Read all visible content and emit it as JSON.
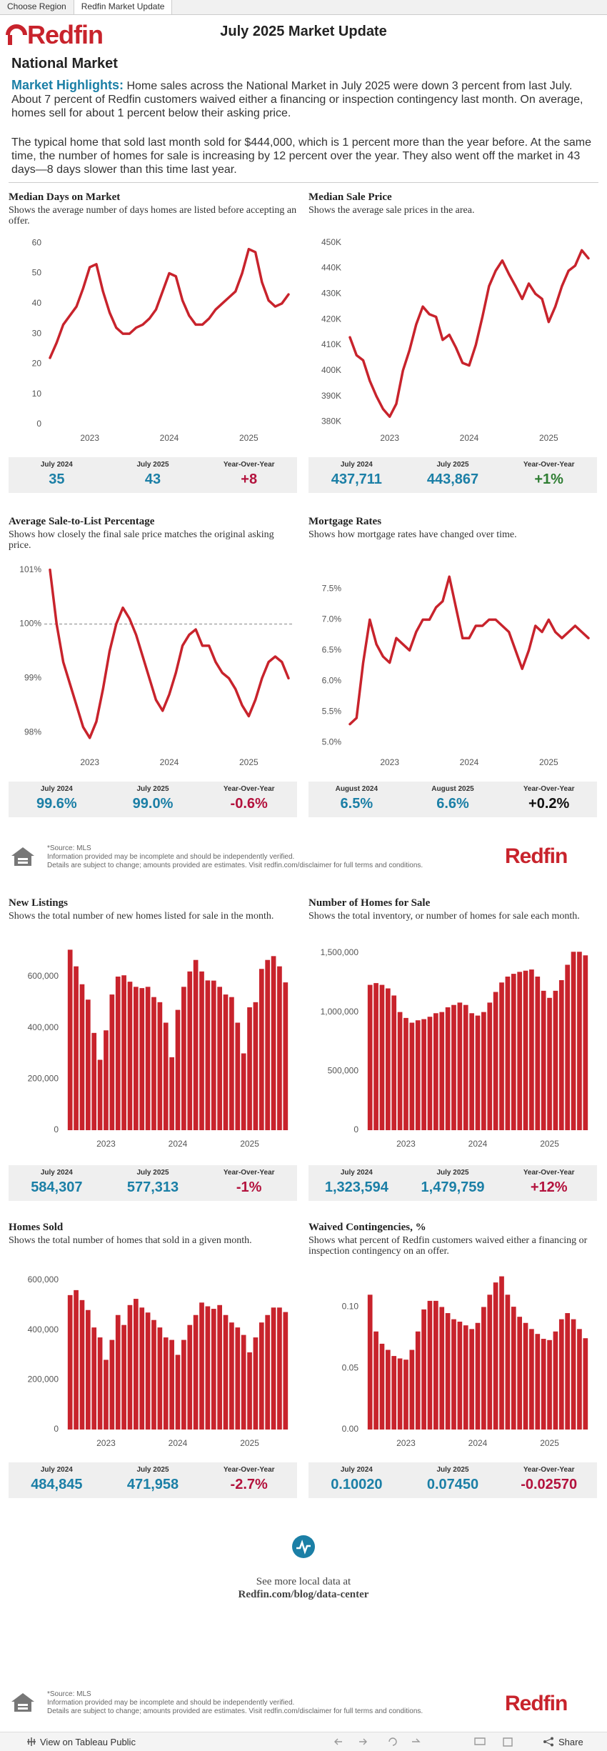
{
  "tabs": [
    "Choose Region",
    "Redfin Market Update"
  ],
  "header": {
    "logo": "Redfin",
    "title": "July 2025 Market Update",
    "region": "National Market"
  },
  "highlights": {
    "label": "Market Highlights:",
    "text": "Home sales across the National Market in July 2025 were down 3 percent from last July. About 7 percent of Redfin customers waived either a financing or inspection contingency last month. On average, homes sell for about 1 percent below their asking price.",
    "text2": "The typical home that sold last month sold for $444,000, which is 1 percent more than the year before. At the same time, the number of homes for sale is increasing by 12 percent over the year. They also went off the market in 43 days—8 days slower than this time last year."
  },
  "chart_data": [
    {
      "type": "line",
      "title": "Median Days on Market",
      "subtitle": "Shows the average number of days homes are listed before accepting an offer.",
      "color": "#c8232c",
      "grid": false,
      "categories": [
        null,
        null,
        null,
        null,
        null,
        null,
        "2023",
        null,
        null,
        null,
        null,
        null,
        null,
        null,
        null,
        null,
        null,
        null,
        "2024",
        null,
        null,
        null,
        null,
        null,
        null,
        null,
        null,
        null,
        null,
        null,
        "2025",
        null,
        null,
        null,
        null,
        null,
        null
      ],
      "values": [
        22,
        27,
        33,
        36,
        39,
        45,
        52,
        53,
        44,
        37,
        32,
        30,
        30,
        32,
        33,
        35,
        38,
        44,
        50,
        49,
        41,
        36,
        33,
        33,
        35,
        38,
        40,
        42,
        44,
        50,
        58,
        57,
        47,
        41,
        39,
        40,
        43
      ],
      "ylim": [
        0,
        61
      ],
      "yticks": [
        0,
        10,
        20,
        30,
        40,
        50,
        60
      ],
      "stats": [
        {
          "label": "July 2024",
          "value": "35",
          "color": "#1b7fa6"
        },
        {
          "label": "July 2025",
          "value": "43",
          "color": "#1b7fa6"
        },
        {
          "label": "Year-Over-Year",
          "value": "+8",
          "color": "#b3123d"
        }
      ]
    },
    {
      "type": "line",
      "title": "Median Sale Price",
      "subtitle": "Shows the average sale prices in the area.",
      "color": "#c8232c",
      "grid": false,
      "categories": [
        null,
        null,
        null,
        null,
        null,
        null,
        "2023",
        null,
        null,
        null,
        null,
        null,
        null,
        null,
        null,
        null,
        null,
        null,
        "2024",
        null,
        null,
        null,
        null,
        null,
        null,
        null,
        null,
        null,
        null,
        null,
        "2025",
        null,
        null,
        null,
        null,
        null,
        null
      ],
      "values": [
        413000,
        406000,
        404000,
        396000,
        390000,
        385000,
        382000,
        387000,
        400000,
        408000,
        418000,
        425000,
        422000,
        421000,
        412000,
        414000,
        409000,
        403000,
        402000,
        410000,
        421000,
        433000,
        439000,
        443000,
        437711,
        433000,
        428000,
        434000,
        430000,
        428000,
        419000,
        425000,
        433000,
        439000,
        441000,
        447000,
        443867
      ],
      "ylim": [
        379000,
        451000
      ],
      "yticks": [
        {
          "value": 380000,
          "label": "380K"
        },
        {
          "value": 390000,
          "label": "390K"
        },
        {
          "value": 400000,
          "label": "400K"
        },
        {
          "value": 410000,
          "label": "410K"
        },
        {
          "value": 420000,
          "label": "420K"
        },
        {
          "value": 430000,
          "label": "430K"
        },
        {
          "value": 440000,
          "label": "440K"
        },
        {
          "value": 450000,
          "label": "450K"
        }
      ],
      "stats": [
        {
          "label": "July 2024",
          "value": "437,711",
          "color": "#1b7fa6"
        },
        {
          "label": "July 2025",
          "value": "443,867",
          "color": "#1b7fa6"
        },
        {
          "label": "Year-Over-Year",
          "value": "+1%",
          "color": "#2e7d32"
        }
      ]
    },
    {
      "type": "line",
      "title": "Average Sale-to-List Percentage",
      "subtitle": "Shows how closely the final sale price matches the original asking price.",
      "color": "#c8232c",
      "grid": false,
      "reference_line": 100,
      "categories": [
        null,
        null,
        null,
        null,
        null,
        null,
        "2023",
        null,
        null,
        null,
        null,
        null,
        null,
        null,
        null,
        null,
        null,
        null,
        "2024",
        null,
        null,
        null,
        null,
        null,
        null,
        null,
        null,
        null,
        null,
        null,
        "2025",
        null,
        null,
        null,
        null,
        null,
        null
      ],
      "values": [
        101.0,
        100.0,
        99.3,
        98.9,
        98.5,
        98.1,
        97.9,
        98.2,
        98.8,
        99.5,
        100.0,
        100.3,
        100.1,
        99.8,
        99.4,
        99.0,
        98.6,
        98.4,
        98.7,
        99.1,
        99.6,
        99.8,
        99.9,
        99.6,
        99.6,
        99.3,
        99.1,
        99.0,
        98.8,
        98.5,
        98.3,
        98.6,
        99.0,
        99.3,
        99.4,
        99.3,
        99.0
      ],
      "ylim": [
        97.7,
        101.1
      ],
      "yticks": [
        {
          "value": 98,
          "label": "98%"
        },
        {
          "value": 99,
          "label": "99%"
        },
        {
          "value": 100,
          "label": "100%"
        },
        {
          "value": 101,
          "label": "101%"
        }
      ],
      "stats": [
        {
          "label": "July 2024",
          "value": "99.6%",
          "color": "#1b7fa6"
        },
        {
          "label": "July 2025",
          "value": "99.0%",
          "color": "#1b7fa6"
        },
        {
          "label": "Year-Over-Year",
          "value": "-0.6%",
          "color": "#b3123d"
        }
      ]
    },
    {
      "type": "line",
      "title": "Mortgage Rates",
      "subtitle": "Shows how mortgage rates have changed over time.",
      "color": "#c8232c",
      "grid": false,
      "categories": [
        null,
        null,
        null,
        null,
        null,
        null,
        "2023",
        null,
        null,
        null,
        null,
        null,
        null,
        null,
        null,
        null,
        null,
        null,
        "2024",
        null,
        null,
        null,
        null,
        null,
        null,
        null,
        null,
        null,
        null,
        null,
        "2025",
        null,
        null,
        null,
        null,
        null,
        null
      ],
      "values": [
        5.3,
        5.4,
        6.3,
        7.0,
        6.6,
        6.4,
        6.3,
        6.7,
        6.6,
        6.5,
        6.8,
        7.0,
        7.0,
        7.2,
        7.3,
        7.7,
        7.2,
        6.7,
        6.7,
        6.9,
        6.9,
        7.0,
        7.0,
        6.9,
        6.8,
        6.5,
        6.2,
        6.5,
        6.9,
        6.8,
        7.0,
        6.8,
        6.7,
        6.8,
        6.9,
        6.8,
        6.7
      ],
      "ylim": [
        4.9,
        7.9
      ],
      "yticks": [
        {
          "value": 5,
          "label": "5.0%"
        },
        {
          "value": 5.5,
          "label": "5.5%"
        },
        {
          "value": 6,
          "label": "6.0%"
        },
        {
          "value": 6.5,
          "label": "6.5%"
        },
        {
          "value": 7,
          "label": "7.0%"
        },
        {
          "value": 7.5,
          "label": "7.5%"
        }
      ],
      "stats": [
        {
          "label": "August 2024",
          "value": "6.5%",
          "color": "#1b7fa6"
        },
        {
          "label": "August 2025",
          "value": "6.6%",
          "color": "#1b7fa6"
        },
        {
          "label": "Year-Over-Year",
          "value": "+0.2%",
          "color": "#111111"
        }
      ]
    },
    {
      "type": "bar",
      "title": "New Listings",
      "subtitle": "Shows the total number of new homes listed for sale in the month.",
      "color": "#c8232c",
      "grid": false,
      "categories": [
        null,
        null,
        null,
        null,
        null,
        null,
        "2023",
        null,
        null,
        null,
        null,
        null,
        null,
        null,
        null,
        null,
        null,
        null,
        "2024",
        null,
        null,
        null,
        null,
        null,
        null,
        null,
        null,
        null,
        null,
        null,
        "2025",
        null,
        null,
        null,
        null,
        null,
        null
      ],
      "values": [
        705000,
        640000,
        570000,
        510000,
        380000,
        275000,
        390000,
        530000,
        600000,
        605000,
        580000,
        560000,
        555000,
        560000,
        520000,
        500000,
        420000,
        285000,
        470000,
        560000,
        620000,
        665000,
        620000,
        585000,
        584307,
        560000,
        530000,
        520000,
        420000,
        300000,
        480000,
        500000,
        630000,
        665000,
        680000,
        640000,
        577313
      ],
      "ylim": [
        0,
        720000
      ],
      "yticks": [
        0,
        {
          "value": 200000,
          "label": "200,000"
        },
        {
          "value": 400000,
          "label": "400,000"
        },
        {
          "value": 600000,
          "label": "600,000"
        }
      ],
      "stats": [
        {
          "label": "July 2024",
          "value": "584,307",
          "color": "#1b7fa6"
        },
        {
          "label": "July 2025",
          "value": "577,313",
          "color": "#1b7fa6"
        },
        {
          "label": "Year-Over-Year",
          "value": "-1%",
          "color": "#b3123d"
        }
      ]
    },
    {
      "type": "bar",
      "title": "Number of Homes for Sale",
      "subtitle": "Shows the total inventory, or number of homes for sale each month.",
      "color": "#c8232c",
      "grid": false,
      "categories": [
        null,
        null,
        null,
        null,
        null,
        null,
        "2023",
        null,
        null,
        null,
        null,
        null,
        null,
        null,
        null,
        null,
        null,
        null,
        "2024",
        null,
        null,
        null,
        null,
        null,
        null,
        null,
        null,
        null,
        null,
        null,
        "2025",
        null,
        null,
        null,
        null,
        null,
        null
      ],
      "values": [
        1230000,
        1245000,
        1230000,
        1200000,
        1140000,
        1000000,
        950000,
        910000,
        930000,
        940000,
        960000,
        990000,
        1000000,
        1040000,
        1060000,
        1080000,
        1060000,
        990000,
        970000,
        1000000,
        1080000,
        1170000,
        1250000,
        1300000,
        1323594,
        1340000,
        1350000,
        1360000,
        1300000,
        1180000,
        1120000,
        1180000,
        1270000,
        1400000,
        1510000,
        1510000,
        1479759
      ],
      "ylim": [
        0,
        1560000
      ],
      "yticks": [
        0,
        {
          "value": 500000,
          "label": "500,000"
        },
        {
          "value": 1000000,
          "label": "1,000,000"
        },
        {
          "value": 1500000,
          "label": "1,500,000"
        }
      ],
      "stats": [
        {
          "label": "July 2024",
          "value": "1,323,594",
          "color": "#1b7fa6"
        },
        {
          "label": "July 2025",
          "value": "1,479,759",
          "color": "#1b7fa6"
        },
        {
          "label": "Year-Over-Year",
          "value": "+12%",
          "color": "#b3123d"
        }
      ]
    },
    {
      "type": "bar",
      "title": "Homes Sold",
      "subtitle": "Shows the total number of homes that sold in a given month.",
      "color": "#c8232c",
      "grid": false,
      "categories": [
        null,
        null,
        null,
        null,
        null,
        null,
        "2023",
        null,
        null,
        null,
        null,
        null,
        null,
        null,
        null,
        null,
        null,
        null,
        "2024",
        null,
        null,
        null,
        null,
        null,
        null,
        null,
        null,
        null,
        null,
        null,
        "2025",
        null,
        null,
        null,
        null,
        null,
        null
      ],
      "values": [
        540000,
        560000,
        520000,
        480000,
        410000,
        370000,
        280000,
        360000,
        460000,
        420000,
        500000,
        525000,
        490000,
        470000,
        440000,
        410000,
        370000,
        360000,
        300000,
        360000,
        420000,
        460000,
        510000,
        495000,
        484845,
        500000,
        460000,
        430000,
        410000,
        380000,
        310000,
        370000,
        430000,
        460000,
        490000,
        490000,
        471958
      ],
      "ylim": [
        0,
        640000
      ],
      "yticks": [
        0,
        {
          "value": 200000,
          "label": "200,000"
        },
        {
          "value": 400000,
          "label": "400,000"
        },
        {
          "value": 600000,
          "label": "600,000"
        }
      ],
      "stats": [
        {
          "label": "July 2024",
          "value": "484,845",
          "color": "#1b7fa6"
        },
        {
          "label": "July 2025",
          "value": "471,958",
          "color": "#1b7fa6"
        },
        {
          "label": "Year-Over-Year",
          "value": "-2.7%",
          "color": "#b3123d"
        }
      ]
    },
    {
      "type": "bar",
      "title": "Waived Contingencies, %",
      "subtitle": "Shows what percent of Redfin customers waived either a financing or inspection contingency on an offer.",
      "color": "#c8232c",
      "grid": false,
      "categories": [
        null,
        null,
        null,
        null,
        null,
        null,
        "2023",
        null,
        null,
        null,
        null,
        null,
        null,
        null,
        null,
        null,
        null,
        null,
        "2024",
        null,
        null,
        null,
        null,
        null,
        null,
        null,
        null,
        null,
        null,
        null,
        "2025",
        null,
        null,
        null,
        null,
        null,
        null
      ],
      "values": [
        0.11,
        0.08,
        0.07,
        0.065,
        0.06,
        0.058,
        0.057,
        0.065,
        0.08,
        0.098,
        0.105,
        0.105,
        0.1,
        0.095,
        0.09,
        0.088,
        0.085,
        0.082,
        0.087,
        0.1,
        0.11,
        0.12,
        0.125,
        0.11,
        0.1002,
        0.092,
        0.087,
        0.082,
        0.078,
        0.074,
        0.073,
        0.08,
        0.09,
        0.095,
        0.09,
        0.082,
        0.0745
      ],
      "ylim": [
        0,
        0.13
      ],
      "yticks": [
        {
          "value": 0,
          "label": "0.00"
        },
        {
          "value": 0.05,
          "label": "0.05"
        },
        {
          "value": 0.1,
          "label": "0.10"
        }
      ],
      "stats": [
        {
          "label": "July 2024",
          "value": "0.10020",
          "color": "#1b7fa6"
        },
        {
          "label": "July 2025",
          "value": "0.07450",
          "color": "#1b7fa6"
        },
        {
          "label": "Year-Over-Year",
          "value": "-0.02570",
          "color": "#b3123d"
        }
      ]
    }
  ],
  "footer": {
    "source": "*Source: MLS",
    "note1": "Information provided may be incomplete and should be independently verified.",
    "note2": "Details are subject to change; amounts provided are estimates. Visit redfin.com/disclaimer for full terms and conditions.",
    "logo": "Redfin"
  },
  "more": {
    "text": "See more local data at",
    "link": "Redfin.com/blog/data-center"
  },
  "toolbar": {
    "view": "View on Tableau Public",
    "share": "Share"
  }
}
